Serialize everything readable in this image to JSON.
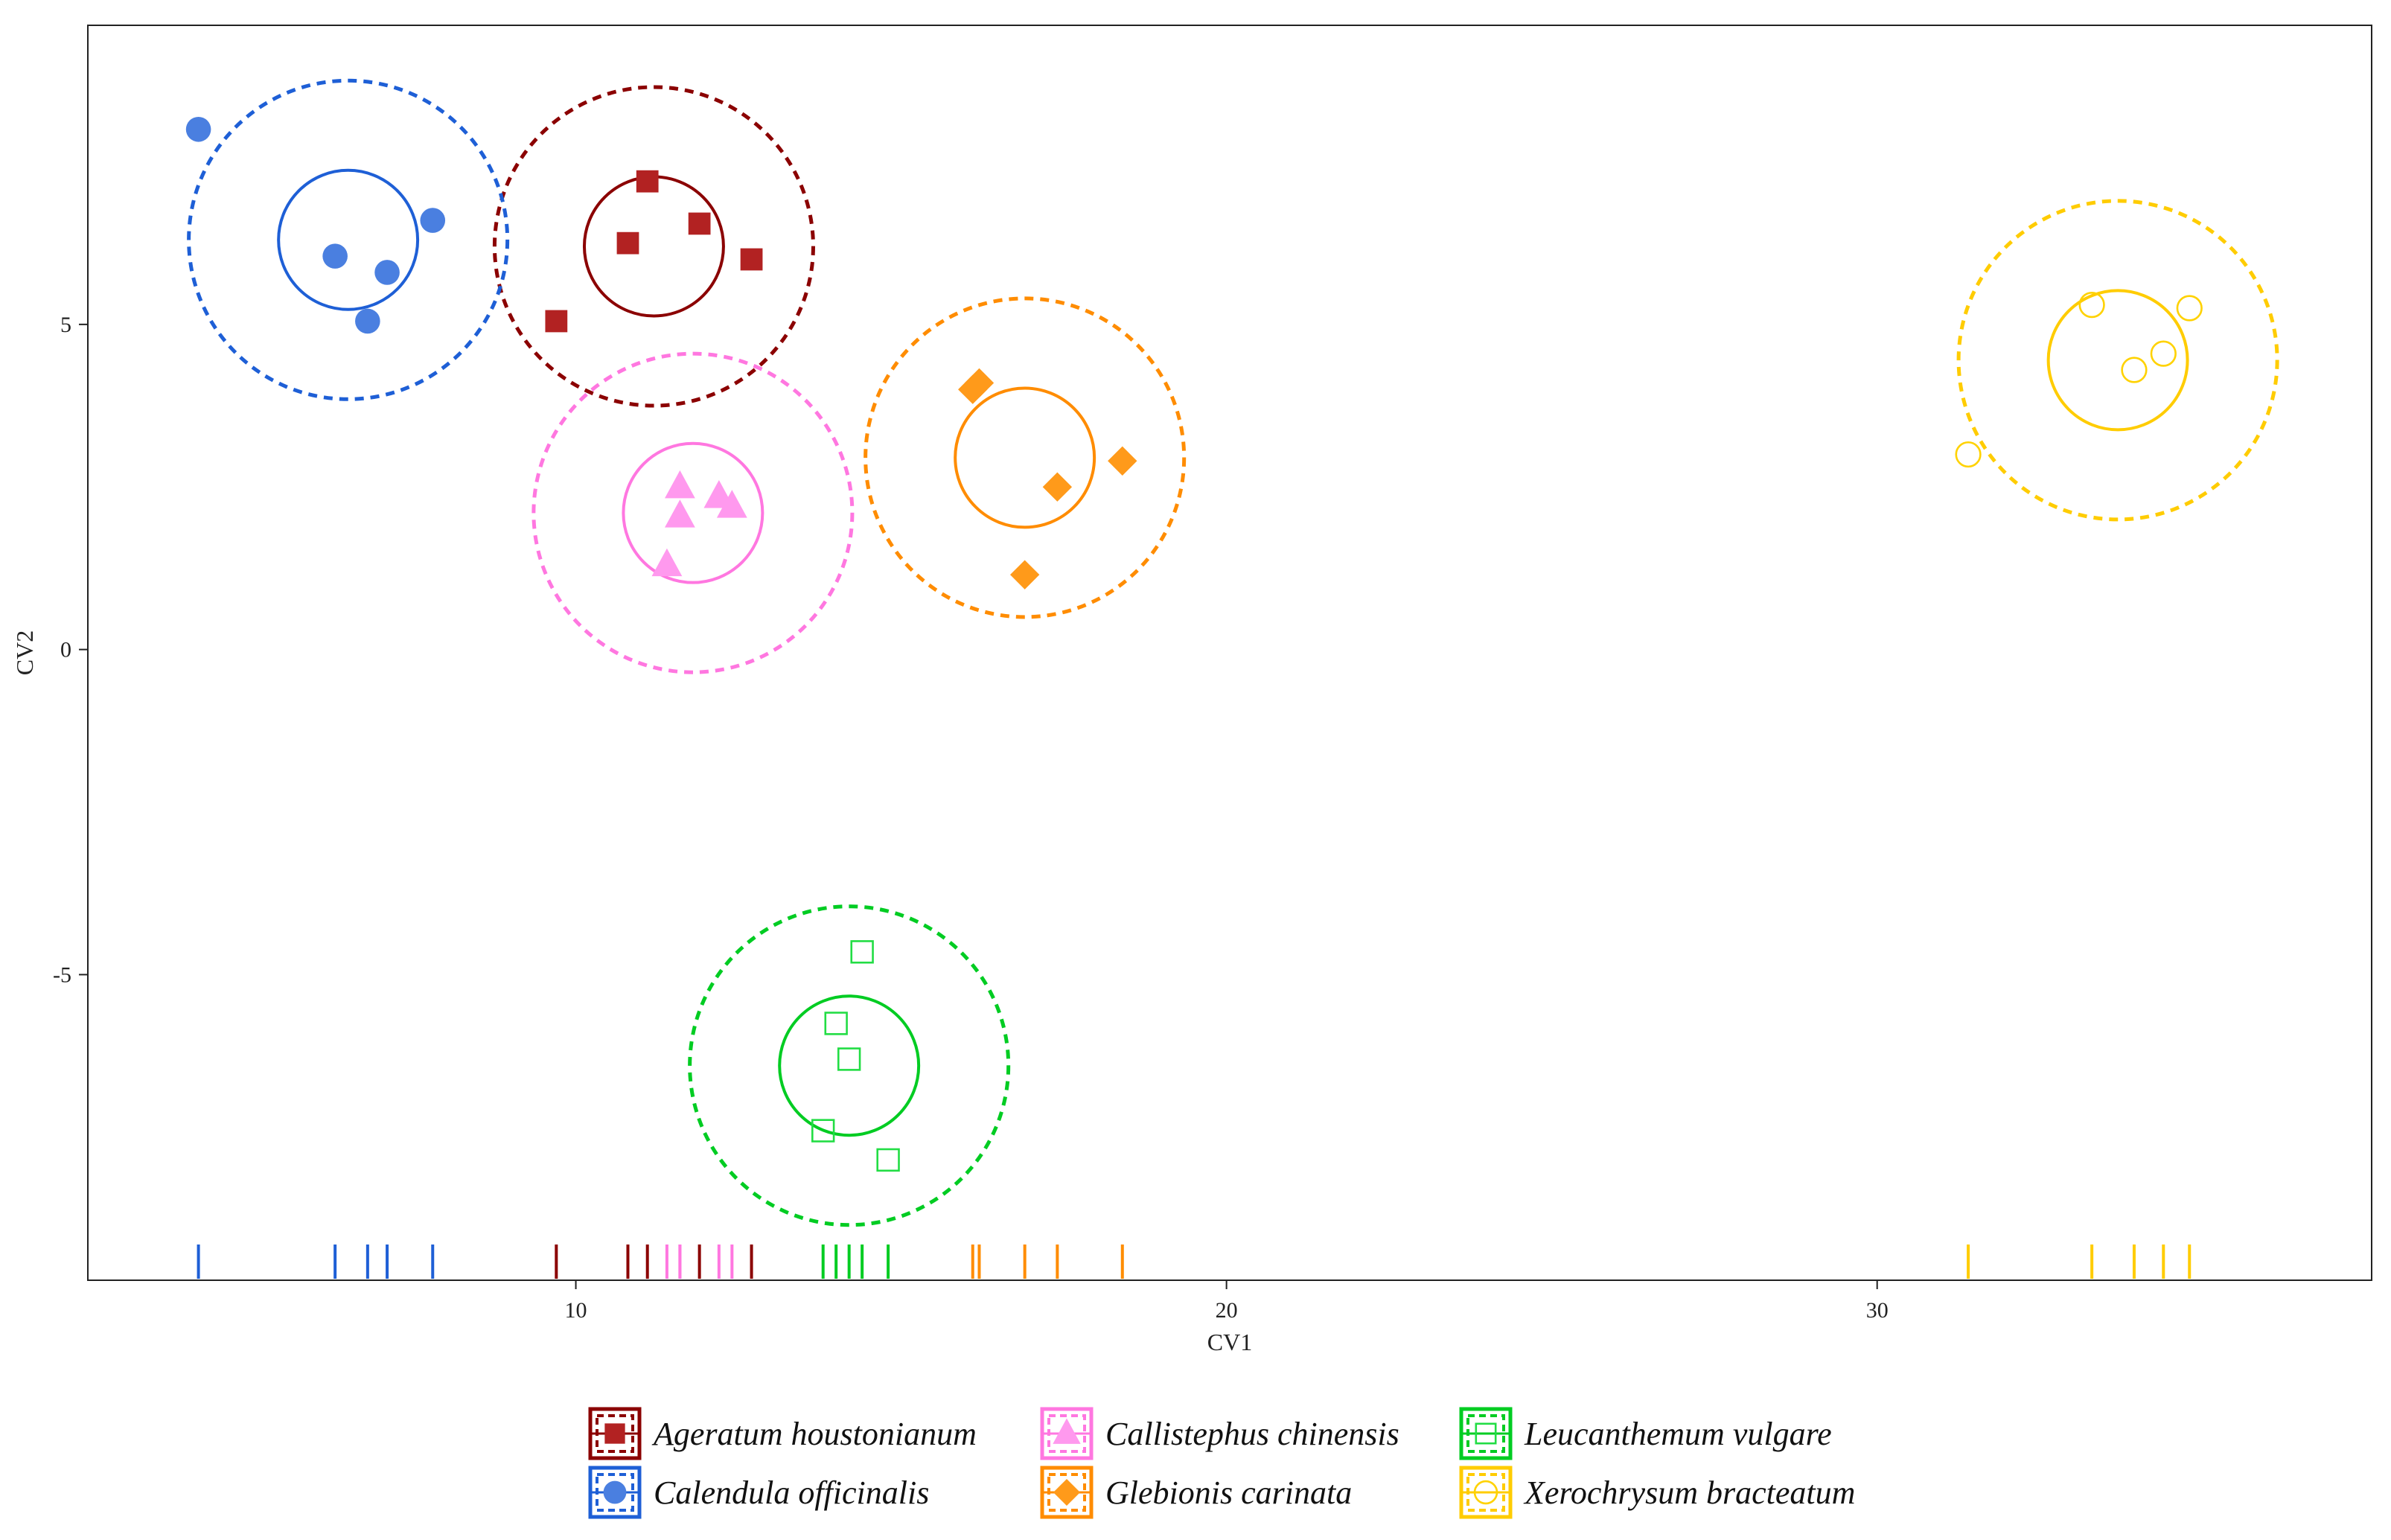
{
  "chart_data": {
    "type": "scatter",
    "title": "",
    "xlabel": "CV1",
    "ylabel": "CV2",
    "xlim": [
      2.5,
      37.6
    ],
    "ylim": [
      -9.7,
      9.6
    ],
    "xticks": [
      10,
      20,
      30
    ],
    "yticks": [
      5,
      0,
      -5
    ],
    "xtick_labels": [
      "10",
      "20",
      "30"
    ],
    "ytick_labels": [
      "5",
      "0",
      "-5"
    ],
    "grid": false,
    "legend_position": "bottom",
    "rug": true,
    "series": [
      {
        "name": "Ageratum houstonianum",
        "color": "#b22222",
        "line_color": "#8b0000",
        "marker": "square-filled",
        "points": [
          [
            11.1,
            7.2
          ],
          [
            10.8,
            6.25
          ],
          [
            11.9,
            6.55
          ],
          [
            12.7,
            6.0
          ],
          [
            9.7,
            5.05
          ]
        ],
        "center": [
          11.2,
          6.2
        ],
        "inner_radius": 1.07,
        "outer_radius": 2.45
      },
      {
        "name": "Calendula officinalis",
        "color": "#4a7fe0",
        "line_color": "#1e5fd6",
        "marker": "circle-filled",
        "points": [
          [
            4.2,
            8.0
          ],
          [
            7.8,
            6.6
          ],
          [
            6.3,
            6.05
          ],
          [
            7.1,
            5.8
          ],
          [
            6.8,
            5.05
          ]
        ],
        "center": [
          6.5,
          6.3
        ],
        "inner_radius": 1.07,
        "outer_radius": 2.45
      },
      {
        "name": "Callistephus chinensis",
        "color": "#ff99ee",
        "line_color": "#ff77e0",
        "marker": "triangle-filled",
        "points": [
          [
            11.6,
            2.5
          ],
          [
            12.2,
            2.35
          ],
          [
            12.4,
            2.2
          ],
          [
            11.6,
            2.05
          ],
          [
            11.4,
            1.3
          ]
        ],
        "center": [
          11.8,
          2.1
        ],
        "inner_radius": 1.07,
        "outer_radius": 2.45
      },
      {
        "name": "Glebionis carinata",
        "color": "#ff9a1a",
        "line_color": "#ff8c00",
        "marker": "diamond-filled",
        "points": [
          [
            16.1,
            4.0
          ],
          [
            16.2,
            4.1
          ],
          [
            18.4,
            2.9
          ],
          [
            17.4,
            2.5
          ],
          [
            16.9,
            1.15
          ]
        ],
        "center": [
          16.9,
          2.95
        ],
        "inner_radius": 1.07,
        "outer_radius": 2.45
      },
      {
        "name": "Leucanthemum vulgare",
        "color": "#22dd44",
        "line_color": "#00cc22",
        "marker": "square-open",
        "points": [
          [
            14.4,
            -4.65
          ],
          [
            14.0,
            -5.75
          ],
          [
            14.2,
            -6.3
          ],
          [
            13.8,
            -7.4
          ],
          [
            14.8,
            -7.85
          ]
        ],
        "center": [
          14.2,
          -6.4
        ],
        "inner_radius": 1.07,
        "outer_radius": 2.45
      },
      {
        "name": "Xerochrysum bracteatum",
        "color": "#ffd200",
        "line_color": "#ffcc00",
        "marker": "circle-open",
        "points": [
          [
            33.3,
            5.3
          ],
          [
            34.8,
            5.25
          ],
          [
            34.4,
            4.55
          ],
          [
            33.95,
            4.3
          ],
          [
            31.4,
            3.0
          ]
        ],
        "center": [
          33.7,
          4.45
        ],
        "inner_radius": 1.07,
        "outer_radius": 2.45
      }
    ]
  }
}
